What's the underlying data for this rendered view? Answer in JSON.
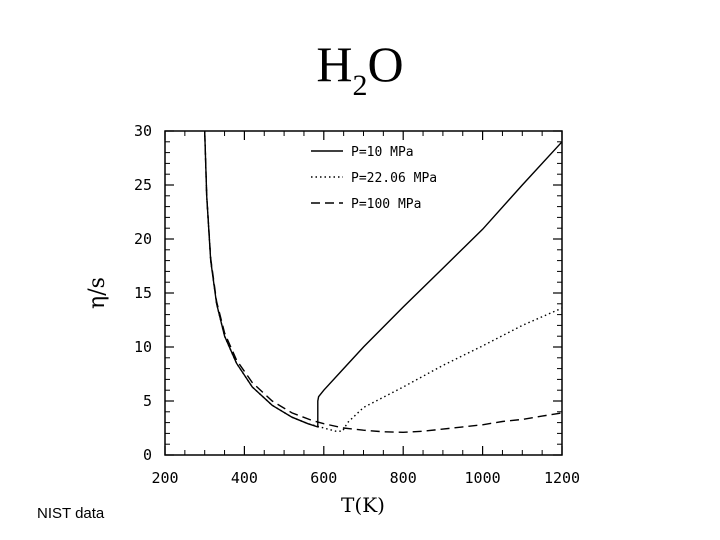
{
  "slide": {
    "title_main": "H",
    "title_sub": "2",
    "title_end": "O",
    "source_note": "NIST data"
  },
  "chart_data": {
    "type": "line",
    "title": "H2O",
    "xlabel": "T(K)",
    "ylabel": "η/s",
    "xlim": [
      200,
      1200
    ],
    "ylim": [
      0,
      30
    ],
    "xticks": [
      200,
      400,
      600,
      800,
      1000,
      1200
    ],
    "yticks": [
      0,
      5,
      10,
      15,
      20,
      25,
      30
    ],
    "grid": false,
    "legend_position": "top-right",
    "series": [
      {
        "name": "P=10 MPa",
        "style": "solid",
        "points": [
          [
            300,
            30
          ],
          [
            305,
            24
          ],
          [
            315,
            18
          ],
          [
            330,
            14
          ],
          [
            350,
            11
          ],
          [
            380,
            8.5
          ],
          [
            420,
            6.3
          ],
          [
            470,
            4.6
          ],
          [
            520,
            3.5
          ],
          [
            560,
            2.9
          ],
          [
            585,
            2.6
          ],
          [
            585,
            5.0
          ],
          [
            587,
            5.4
          ],
          [
            600,
            6.0
          ],
          [
            650,
            8.0
          ],
          [
            700,
            10.0
          ],
          [
            800,
            13.7
          ],
          [
            900,
            17.3
          ],
          [
            1000,
            20.9
          ],
          [
            1100,
            25.0
          ],
          [
            1200,
            29.0
          ]
        ]
      },
      {
        "name": "P=22.06 MPa",
        "style": "dotted",
        "points": [
          [
            300,
            30
          ],
          [
            305,
            24
          ],
          [
            315,
            18
          ],
          [
            330,
            14
          ],
          [
            350,
            11
          ],
          [
            380,
            8.5
          ],
          [
            420,
            6.3
          ],
          [
            470,
            4.6
          ],
          [
            520,
            3.5
          ],
          [
            560,
            2.9
          ],
          [
            600,
            2.5
          ],
          [
            630,
            2.2
          ],
          [
            647,
            2.2
          ],
          [
            660,
            3.0
          ],
          [
            700,
            4.4
          ],
          [
            800,
            6.3
          ],
          [
            900,
            8.3
          ],
          [
            1000,
            10.1
          ],
          [
            1100,
            12.0
          ],
          [
            1200,
            13.6
          ]
        ]
      },
      {
        "name": "P=100 MPa",
        "style": "dashed",
        "points": [
          [
            300,
            30
          ],
          [
            305,
            24
          ],
          [
            315,
            18.2
          ],
          [
            330,
            14.2
          ],
          [
            350,
            11.3
          ],
          [
            380,
            8.8
          ],
          [
            420,
            6.7
          ],
          [
            470,
            5.0
          ],
          [
            520,
            3.9
          ],
          [
            570,
            3.2
          ],
          [
            600,
            2.9
          ],
          [
            650,
            2.5
          ],
          [
            700,
            2.3
          ],
          [
            750,
            2.15
          ],
          [
            800,
            2.1
          ],
          [
            850,
            2.2
          ],
          [
            900,
            2.4
          ],
          [
            950,
            2.6
          ],
          [
            1000,
            2.8
          ],
          [
            1050,
            3.1
          ],
          [
            1100,
            3.3
          ],
          [
            1150,
            3.6
          ],
          [
            1200,
            3.9
          ]
        ]
      }
    ]
  }
}
